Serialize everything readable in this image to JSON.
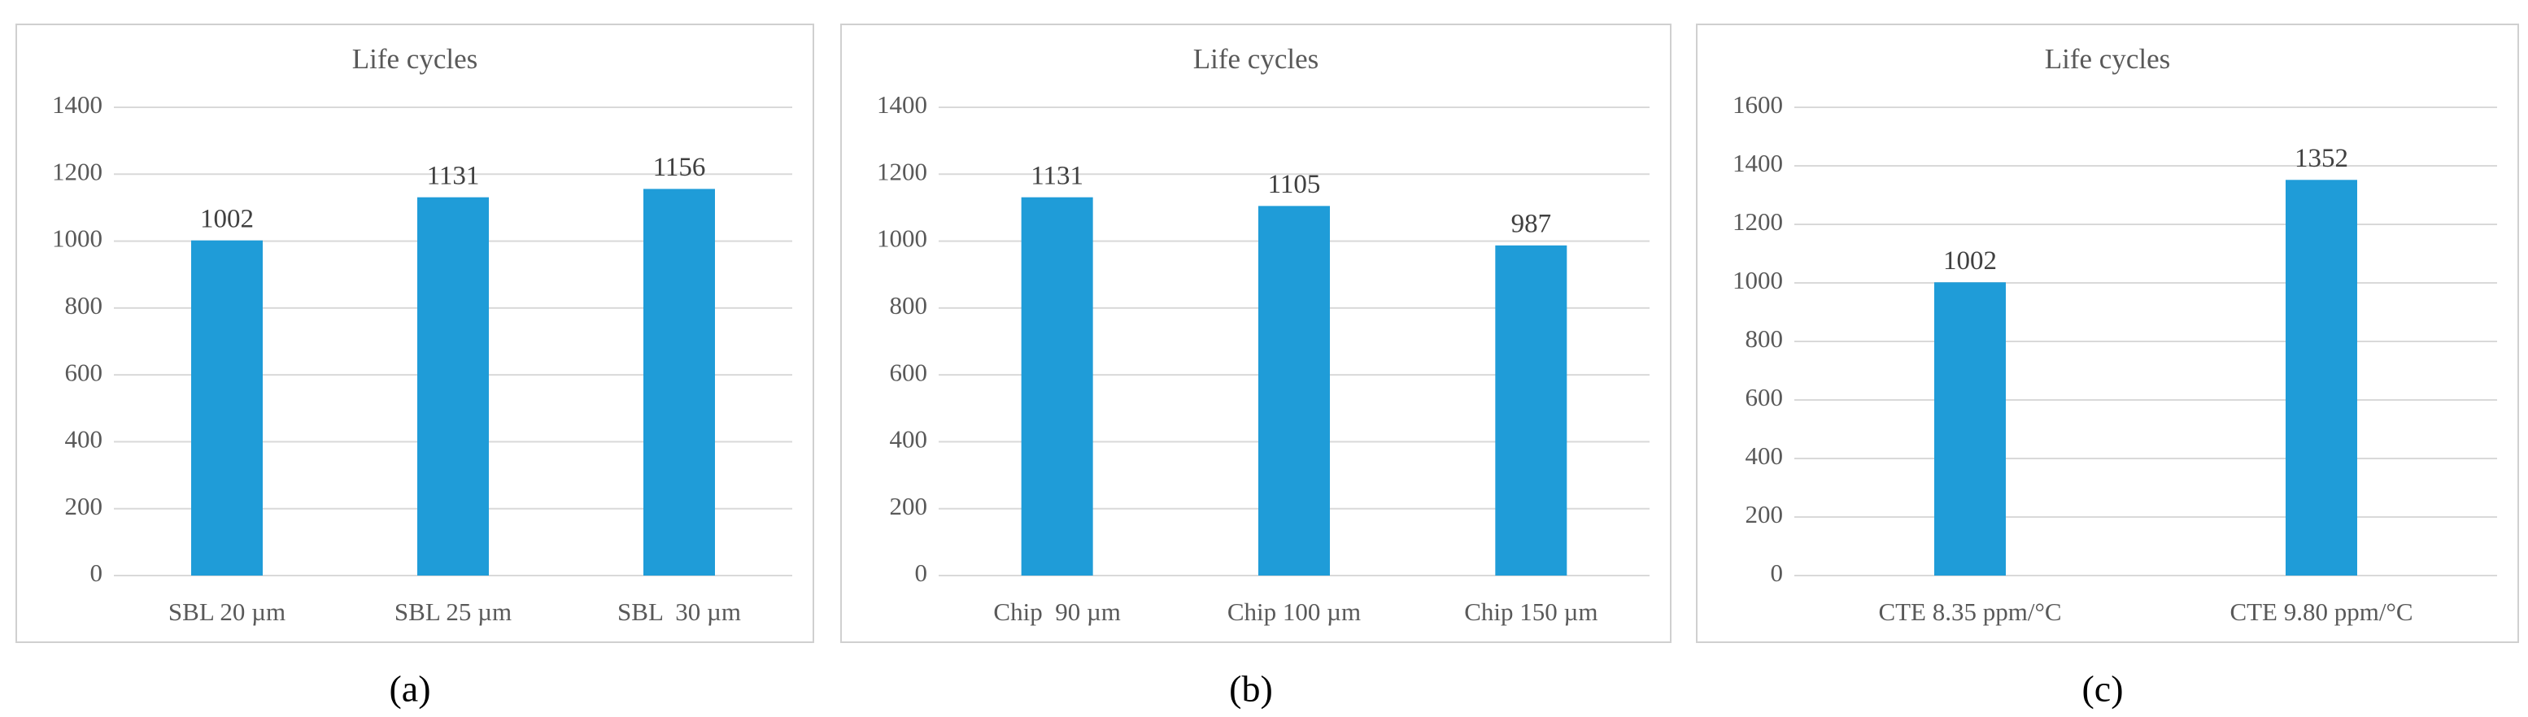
{
  "chart_data": [
    {
      "type": "bar",
      "title": "Life cycles",
      "caption": "(a)",
      "categories": [
        "SBL 20 µm",
        "SBL 25 µm",
        "SBL  30 µm"
      ],
      "values": [
        1002,
        1131,
        1156
      ],
      "color": "#1f9cd8",
      "ylim": [
        0,
        1400
      ],
      "yticks": [
        0,
        200,
        400,
        600,
        800,
        1000,
        1200,
        1400
      ],
      "grid": true
    },
    {
      "type": "bar",
      "title": "Life cycles",
      "caption": "(b)",
      "categories": [
        "Chip  90 µm",
        "Chip 100 µm",
        "Chip 150 µm"
      ],
      "values": [
        1131,
        1105,
        987
      ],
      "color": "#1f9cd8",
      "ylim": [
        0,
        1400
      ],
      "yticks": [
        0,
        200,
        400,
        600,
        800,
        1000,
        1200,
        1400
      ],
      "grid": true
    },
    {
      "type": "bar",
      "title": "Life cycles",
      "caption": "(c)",
      "categories": [
        "CTE 8.35 ppm/°C",
        "CTE 9.80 ppm/°C"
      ],
      "values": [
        1002,
        1352
      ],
      "color": "#1f9cd8",
      "ylim": [
        0,
        1600
      ],
      "yticks": [
        0,
        200,
        400,
        600,
        800,
        1000,
        1200,
        1400,
        1600
      ],
      "grid": true
    }
  ]
}
